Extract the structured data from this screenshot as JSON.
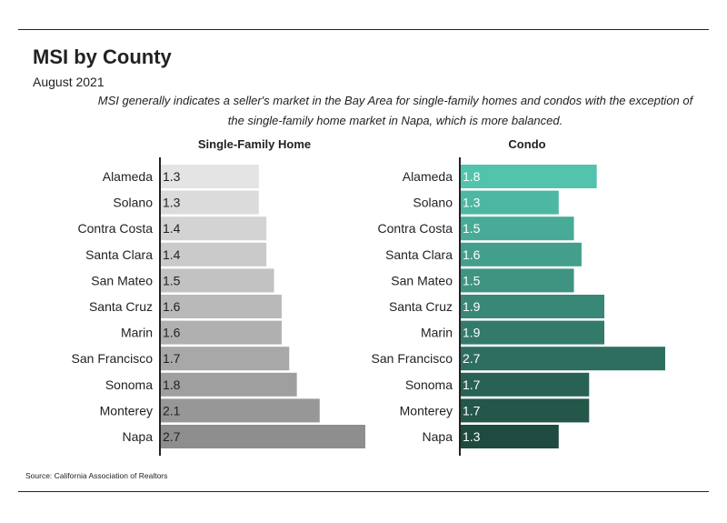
{
  "header": {
    "title": "MSI by County",
    "subtitle": "August 2021",
    "note": "MSI generally indicates a seller's market in the Bay Area for single-family homes and condos with the exception of the single-family home market in Napa, which is more balanced."
  },
  "footer": {
    "source": "Source:  California Association of Realtors"
  },
  "colors": {
    "single_family_gradient": [
      "#e4e4e4",
      "#8e8e8e"
    ],
    "condo_gradient": [
      "#52c3ad",
      "#1f4a3f"
    ]
  },
  "chart_data": [
    {
      "type": "bar",
      "orientation": "horizontal",
      "title": "Single-Family Home",
      "categories": [
        "Alameda",
        "Solano",
        "Contra Costa",
        "Santa Clara",
        "San Mateo",
        "Santa Cruz",
        "Marin",
        "San Francisco",
        "Sonoma",
        "Monterey",
        "Napa"
      ],
      "values": [
        1.3,
        1.3,
        1.4,
        1.4,
        1.5,
        1.6,
        1.6,
        1.7,
        1.8,
        2.1,
        2.7
      ],
      "labels": [
        "1.3",
        "1.3",
        "1.4",
        "1.4",
        "1.5",
        "1.6",
        "1.6",
        "1.7",
        "1.8",
        "2.1",
        "2.7"
      ],
      "xlim": [
        0,
        2.7
      ],
      "grid": false,
      "legend": "none"
    },
    {
      "type": "bar",
      "orientation": "horizontal",
      "title": "Condo",
      "categories": [
        "Alameda",
        "Solano",
        "Contra Costa",
        "Santa Clara",
        "San Mateo",
        "Santa Cruz",
        "Marin",
        "San Francisco",
        "Sonoma",
        "Monterey",
        "Napa"
      ],
      "values": [
        1.8,
        1.3,
        1.5,
        1.6,
        1.5,
        1.9,
        1.9,
        2.7,
        1.7,
        1.7,
        1.3
      ],
      "labels": [
        "1.8",
        "1.3",
        "1.5",
        "1.6",
        "1.5",
        "1.9",
        "1.9",
        "2.7",
        "1.7",
        "1.7",
        "1.3"
      ],
      "xlim": [
        0,
        2.7
      ],
      "grid": false,
      "legend": "none"
    }
  ]
}
